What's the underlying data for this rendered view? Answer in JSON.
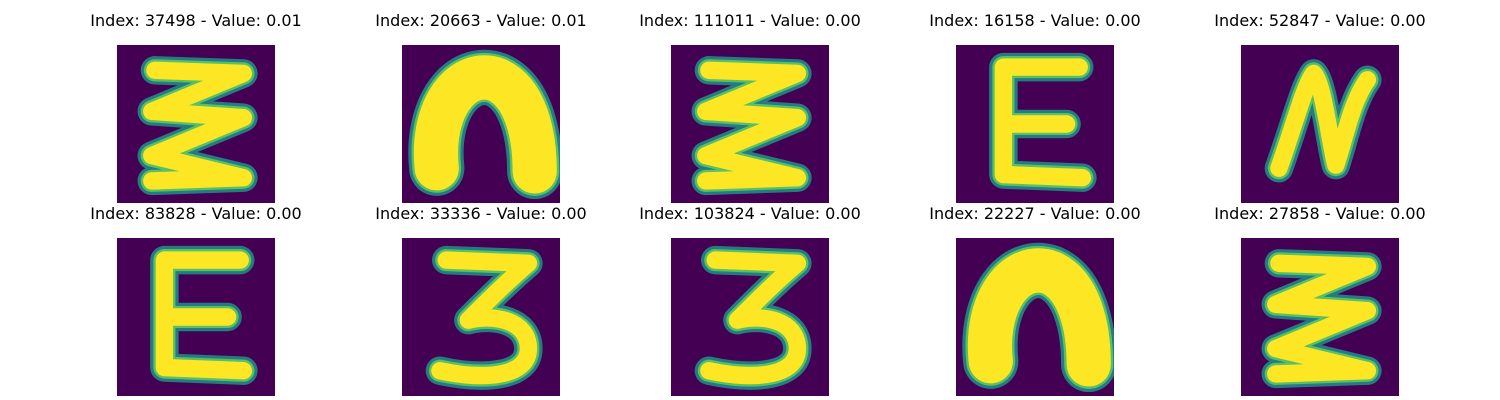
{
  "chart_data": {
    "type": "image_grid",
    "rows": 2,
    "cols": 5,
    "colors": {
      "background": "#440154",
      "teal": "#21918c",
      "green": "#5ec962",
      "yellow": "#fde725"
    },
    "panels": [
      {
        "title": "Index: 37498 - Value: 0.01",
        "glyph": "zigzag-3"
      },
      {
        "title": "Index: 20663 - Value: 0.01",
        "glyph": "arch"
      },
      {
        "title": "Index: 111011 - Value: 0.00",
        "glyph": "zigzag-3"
      },
      {
        "title": "Index: 16158 - Value: 0.00",
        "glyph": "epsilon"
      },
      {
        "title": "Index: 52847 - Value: 0.00",
        "glyph": "n-shape"
      },
      {
        "title": "Index: 83828 - Value: 0.00",
        "glyph": "epsilon"
      },
      {
        "title": "Index: 33336 - Value: 0.00",
        "glyph": "three"
      },
      {
        "title": "Index: 103824 - Value: 0.00",
        "glyph": "three"
      },
      {
        "title": "Index: 22227 - Value: 0.00",
        "glyph": "arch"
      },
      {
        "title": "Index: 27858 - Value: 0.00",
        "glyph": "zigzag-3"
      }
    ]
  }
}
